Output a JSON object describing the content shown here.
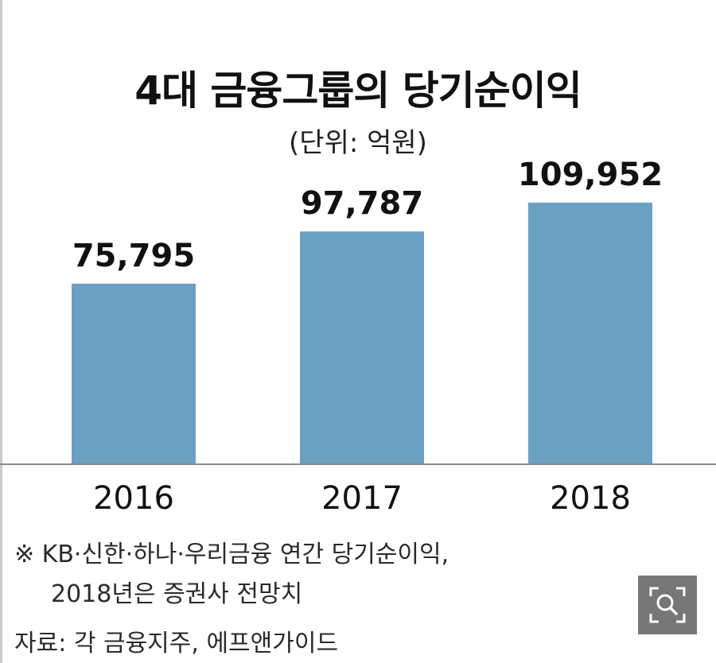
{
  "chart_data": {
    "type": "bar",
    "title": "4대 금융그룹의 당기순이익",
    "unit_label": "(단위: 억원)",
    "categories": [
      "2016",
      "2017",
      "2018"
    ],
    "values": [
      75795,
      97787,
      109952
    ],
    "value_labels": [
      "75,795",
      "97,787",
      "109,952"
    ],
    "ylim": [
      0,
      125000
    ],
    "bar_color": "#6aa1c3",
    "axis_color": "#8a8a8a",
    "grid": false,
    "legend": "none"
  },
  "footnote": {
    "line1": "※ KB·신한·하나·우리금융 연간 당기순이익,",
    "line2": "2018년은 증권사 전망치"
  },
  "source": "자료: 각 금융지주, 에프앤가이드",
  "zoom_button": {
    "icon": "magnifier-icon",
    "color": "#777777"
  }
}
